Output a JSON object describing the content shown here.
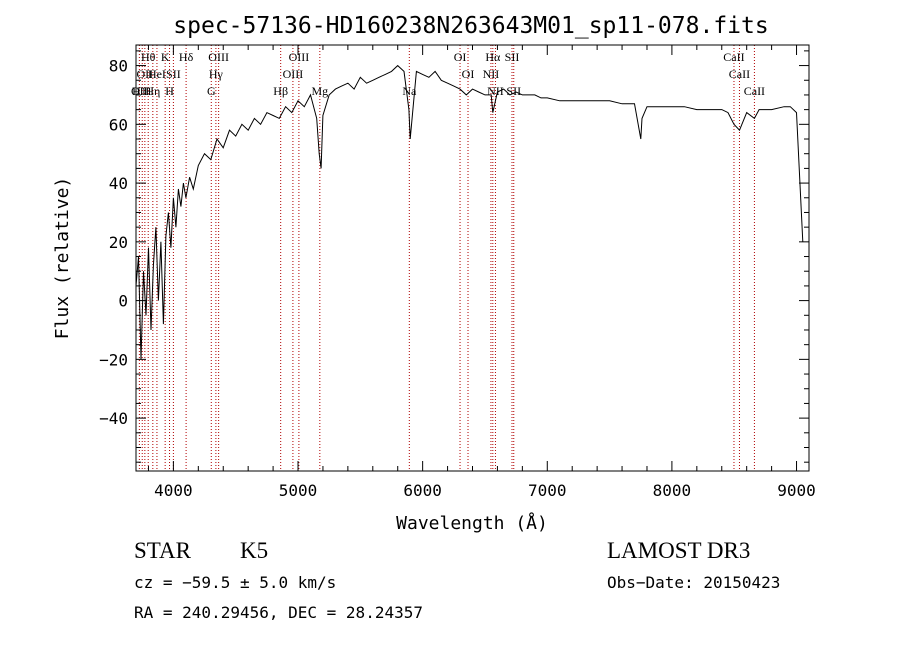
{
  "chart_data": {
    "type": "line",
    "title": "spec-57136-HD160238N263643M01_sp11-078.fits",
    "xlabel": "Wavelength (Å)",
    "ylabel": "Flux (relative)",
    "xlim": [
      3700,
      9100
    ],
    "ylim": [
      -58,
      87
    ],
    "xticks": [
      4000,
      5000,
      6000,
      7000,
      8000,
      9000
    ],
    "xtick_labels": [
      "4000",
      "5000",
      "6000",
      "7000",
      "8000",
      "9000"
    ],
    "yticks": [
      -40,
      -20,
      0,
      20,
      40,
      60,
      80
    ],
    "ytick_labels": [
      "−40",
      "−20",
      "0",
      "20",
      "40",
      "60",
      "80"
    ],
    "line_color": "#000000",
    "marker_color": "#b00000",
    "series": [
      {
        "name": "flux",
        "x": [
          3700,
          3720,
          3740,
          3760,
          3780,
          3800,
          3820,
          3840,
          3860,
          3880,
          3900,
          3920,
          3940,
          3960,
          3980,
          4000,
          4020,
          4040,
          4060,
          4080,
          4100,
          4130,
          4160,
          4200,
          4250,
          4300,
          4350,
          4400,
          4450,
          4500,
          4550,
          4600,
          4650,
          4700,
          4750,
          4800,
          4850,
          4900,
          4950,
          5000,
          5050,
          5100,
          5150,
          5170,
          5185,
          5200,
          5250,
          5300,
          5350,
          5400,
          5450,
          5500,
          5550,
          5600,
          5650,
          5700,
          5750,
          5800,
          5850,
          5890,
          5900,
          5950,
          6000,
          6050,
          6100,
          6150,
          6200,
          6250,
          6300,
          6350,
          6400,
          6450,
          6500,
          6550,
          6563,
          6600,
          6650,
          6700,
          6750,
          6800,
          6850,
          6900,
          6950,
          7000,
          7100,
          7200,
          7300,
          7400,
          7500,
          7600,
          7700,
          7750,
          7760,
          7800,
          7900,
          8000,
          8100,
          8200,
          8300,
          8400,
          8450,
          8498,
          8542,
          8600,
          8662,
          8700,
          8800,
          8900,
          8950,
          9000,
          9050
        ],
        "y": [
          5,
          15,
          -20,
          10,
          -5,
          18,
          -10,
          12,
          25,
          0,
          20,
          -8,
          22,
          30,
          18,
          35,
          25,
          38,
          32,
          40,
          35,
          42,
          38,
          46,
          50,
          48,
          55,
          52,
          58,
          56,
          60,
          58,
          62,
          60,
          64,
          63,
          62,
          66,
          64,
          68,
          66,
          70,
          62,
          50,
          45,
          63,
          70,
          72,
          73,
          74,
          72,
          76,
          74,
          75,
          76,
          77,
          78,
          80,
          78,
          65,
          55,
          78,
          77,
          76,
          78,
          75,
          74,
          73,
          72,
          70,
          72,
          71,
          70,
          70,
          64,
          71,
          72,
          70,
          71,
          70,
          70,
          70,
          69,
          69,
          68,
          68,
          68,
          68,
          68,
          67,
          67,
          55,
          62,
          66,
          66,
          66,
          66,
          65,
          65,
          65,
          64,
          60,
          58,
          64,
          62,
          65,
          65,
          66,
          66,
          64,
          20
        ]
      }
    ],
    "lines": [
      {
        "x": 3727,
        "row": 2,
        "label": "OII"
      },
      {
        "x": 3750,
        "row": 2,
        "label": "H11"
      },
      {
        "x": 3771,
        "row": 1,
        "label": "OII"
      },
      {
        "x": 3798,
        "row": 0,
        "label": "Hθ"
      },
      {
        "x": 3835,
        "row": 2,
        "label": "Hη"
      },
      {
        "x": 3868,
        "row": 1,
        "label": "HeI"
      },
      {
        "x": 3934,
        "row": 0,
        "label": "K"
      },
      {
        "x": 3969,
        "row": 2,
        "label": "H"
      },
      {
        "x": 4000,
        "row": 1,
        "label": "SII"
      },
      {
        "x": 4102,
        "row": 0,
        "label": "Hδ"
      },
      {
        "x": 4304,
        "row": 2,
        "label": "G"
      },
      {
        "x": 4341,
        "row": 1,
        "label": "Hγ"
      },
      {
        "x": 4363,
        "row": 0,
        "label": "OIII"
      },
      {
        "x": 4861,
        "row": 2,
        "label": "Hβ"
      },
      {
        "x": 4959,
        "row": 1,
        "label": "OIII"
      },
      {
        "x": 5007,
        "row": 0,
        "label": "OIII"
      },
      {
        "x": 5175,
        "row": 2,
        "label": "Mg"
      },
      {
        "x": 5893,
        "row": 2,
        "label": "Na"
      },
      {
        "x": 6300,
        "row": 0,
        "label": "OI"
      },
      {
        "x": 6364,
        "row": 1,
        "label": "OI"
      },
      {
        "x": 6548,
        "row": 1,
        "label": "NII"
      },
      {
        "x": 6563,
        "row": 0,
        "label": "Hα"
      },
      {
        "x": 6584,
        "row": 2,
        "label": "NII"
      },
      {
        "x": 6717,
        "row": 0,
        "label": "SII"
      },
      {
        "x": 6731,
        "row": 2,
        "label": "SII"
      },
      {
        "x": 8498,
        "row": 0,
        "label": "CaII"
      },
      {
        "x": 8542,
        "row": 1,
        "label": "CaII"
      },
      {
        "x": 8662,
        "row": 2,
        "label": "CaII"
      }
    ]
  },
  "info": {
    "object_class": "STAR",
    "subclass": "K5",
    "survey": "LAMOST DR3",
    "cz": "cz = −59.5 ± 5.0 km/s",
    "obs_date": "Obs−Date: 20150423",
    "coords": "RA = 240.29456, DEC =  28.24357"
  }
}
